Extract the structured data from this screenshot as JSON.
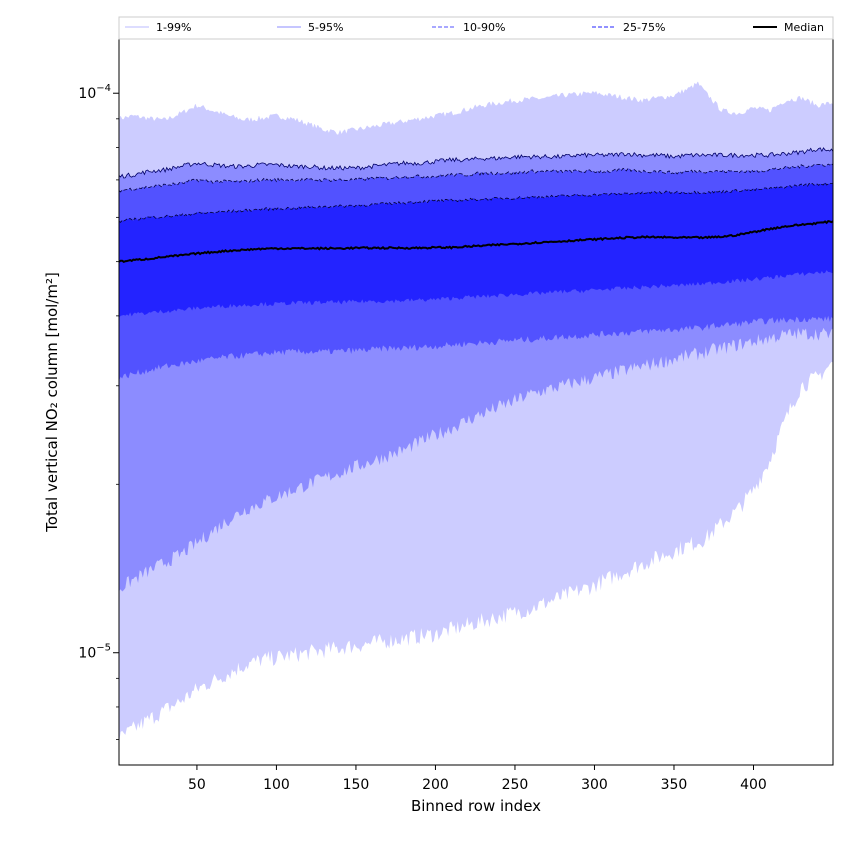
{
  "chart_data": {
    "type": "area",
    "xlabel": "Binned row index",
    "ylabel": "Total vertical NO₂ column [mol/m²]",
    "y_scale": "log",
    "xlim": [
      1,
      450
    ],
    "ylim": [
      6.3e-06,
      0.000125
    ],
    "grid": false,
    "legend_position": "top",
    "x_ticks": [
      {
        "value": 50,
        "label": "50"
      },
      {
        "value": 100,
        "label": "100"
      },
      {
        "value": 150,
        "label": "150"
      },
      {
        "value": 200,
        "label": "200"
      },
      {
        "value": 250,
        "label": "250"
      },
      {
        "value": 300,
        "label": "300"
      },
      {
        "value": 350,
        "label": "350"
      },
      {
        "value": 400,
        "label": "400"
      }
    ],
    "y_major_ticks": [
      {
        "value": 1e-05,
        "base": "10",
        "exp": "−5"
      },
      {
        "value": 0.0001,
        "base": "10",
        "exp": "−4"
      }
    ],
    "x": [
      1,
      10,
      20,
      30,
      40,
      50,
      60,
      70,
      80,
      90,
      100,
      110,
      120,
      130,
      140,
      150,
      160,
      170,
      180,
      190,
      200,
      210,
      220,
      230,
      240,
      250,
      260,
      270,
      280,
      290,
      300,
      310,
      320,
      330,
      340,
      350,
      360,
      365,
      370,
      380,
      390,
      400,
      410,
      420,
      430,
      440,
      450
    ],
    "bands": [
      {
        "name": "1-99%",
        "color": "#ccccff",
        "line_color": "#ccccff",
        "line_style": "solid",
        "upper": [
          9e-05,
          9.1e-05,
          9e-05,
          8.95e-05,
          9.2e-05,
          9.5e-05,
          9.3e-05,
          9.1e-05,
          8.95e-05,
          9e-05,
          9.1e-05,
          9e-05,
          8.8e-05,
          8.6e-05,
          8.5e-05,
          8.6e-05,
          8.7e-05,
          8.8e-05,
          8.9e-05,
          9e-05,
          9.1e-05,
          9.2e-05,
          9.35e-05,
          9.5e-05,
          9.6e-05,
          9.7e-05,
          9.75e-05,
          9.8e-05,
          9.9e-05,
          9.95e-05,
          0.0001,
          9.9e-05,
          9.8e-05,
          9.7e-05,
          9.8e-05,
          9.9e-05,
          0.000102,
          0.000104,
          0.0001,
          9.3e-05,
          9.2e-05,
          9.4e-05,
          9.3e-05,
          9.7e-05,
          9.8e-05,
          9.5e-05,
          9.6e-05
        ],
        "lower": [
          7e-06,
          7.3e-06,
          7.6e-06,
          7.9e-06,
          8.2e-06,
          8.6e-06,
          8.9e-06,
          9.2e-06,
          9.5e-06,
          9.7e-06,
          9.8e-06,
          9.9e-06,
          1e-05,
          1.01e-05,
          1.02e-05,
          1.03e-05,
          1.04e-05,
          1.05e-05,
          1.06e-05,
          1.07e-05,
          1.08e-05,
          1.1e-05,
          1.12e-05,
          1.14e-05,
          1.16e-05,
          1.18e-05,
          1.2e-05,
          1.23e-05,
          1.26e-05,
          1.29e-05,
          1.32e-05,
          1.36e-05,
          1.4e-05,
          1.44e-05,
          1.48e-05,
          1.52e-05,
          1.56e-05,
          1.58e-05,
          1.6e-05,
          1.7e-05,
          1.8e-05,
          1.95e-05,
          2.2e-05,
          2.6e-05,
          3e-05,
          3.1e-05,
          3.3e-05
        ]
      },
      {
        "name": "5-95%",
        "color": "#8c8cff",
        "line_color": "#000066",
        "line_style": "solid",
        "upper": [
          7.1e-05,
          7.15e-05,
          7.25e-05,
          7.3e-05,
          7.4e-05,
          7.5e-05,
          7.45e-05,
          7.4e-05,
          7.4e-05,
          7.45e-05,
          7.45e-05,
          7.4e-05,
          7.4e-05,
          7.35e-05,
          7.35e-05,
          7.35e-05,
          7.4e-05,
          7.45e-05,
          7.5e-05,
          7.5e-05,
          7.55e-05,
          7.6e-05,
          7.6e-05,
          7.65e-05,
          7.65e-05,
          7.7e-05,
          7.7e-05,
          7.7e-05,
          7.7e-05,
          7.75e-05,
          7.75e-05,
          7.75e-05,
          7.8e-05,
          7.75e-05,
          7.75e-05,
          7.7e-05,
          7.75e-05,
          7.75e-05,
          7.75e-05,
          7.75e-05,
          7.75e-05,
          7.75e-05,
          7.75e-05,
          7.8e-05,
          7.85e-05,
          7.95e-05,
          7.9e-05
        ],
        "lower": [
          1.3e-05,
          1.35e-05,
          1.4e-05,
          1.45e-05,
          1.5e-05,
          1.57e-05,
          1.65e-05,
          1.73e-05,
          1.8e-05,
          1.85e-05,
          1.9e-05,
          1.95e-05,
          2e-05,
          2.05e-05,
          2.1e-05,
          2.15e-05,
          2.2e-05,
          2.25e-05,
          2.3e-05,
          2.38e-05,
          2.45e-05,
          2.52e-05,
          2.6e-05,
          2.68e-05,
          2.75e-05,
          2.82e-05,
          2.9e-05,
          2.95e-05,
          3e-05,
          3.05e-05,
          3.1e-05,
          3.15e-05,
          3.2e-05,
          3.25e-05,
          3.3e-05,
          3.35e-05,
          3.4e-05,
          3.42e-05,
          3.45e-05,
          3.5e-05,
          3.55e-05,
          3.6e-05,
          3.65e-05,
          3.7e-05,
          3.72e-05,
          3.72e-05,
          3.7e-05
        ]
      },
      {
        "name": "10-90%",
        "color": "#5252ff",
        "line_color": "#000044",
        "line_style": "dashed",
        "upper": [
          6.7e-05,
          6.75e-05,
          6.8e-05,
          6.85e-05,
          6.9e-05,
          7e-05,
          6.95e-05,
          6.95e-05,
          6.95e-05,
          7e-05,
          7e-05,
          7e-05,
          7e-05,
          7e-05,
          7e-05,
          7e-05,
          7.05e-05,
          7.05e-05,
          7.1e-05,
          7.1e-05,
          7.1e-05,
          7.15e-05,
          7.15e-05,
          7.2e-05,
          7.2e-05,
          7.2e-05,
          7.25e-05,
          7.25e-05,
          7.25e-05,
          7.25e-05,
          7.25e-05,
          7.25e-05,
          7.3e-05,
          7.25e-05,
          7.25e-05,
          7.2e-05,
          7.25e-05,
          7.25e-05,
          7.25e-05,
          7.25e-05,
          7.25e-05,
          7.25e-05,
          7.3e-05,
          7.35e-05,
          7.4e-05,
          7.45e-05,
          7.45e-05
        ],
        "lower": [
          3.1e-05,
          3.15e-05,
          3.2e-05,
          3.25e-05,
          3.28e-05,
          3.32e-05,
          3.35e-05,
          3.38e-05,
          3.4e-05,
          3.42e-05,
          3.44e-05,
          3.45e-05,
          3.45e-05,
          3.45e-05,
          3.46e-05,
          3.47e-05,
          3.48e-05,
          3.5e-05,
          3.5e-05,
          3.52e-05,
          3.53e-05,
          3.55e-05,
          3.57e-05,
          3.58e-05,
          3.6e-05,
          3.62e-05,
          3.63e-05,
          3.65e-05,
          3.67e-05,
          3.68e-05,
          3.7e-05,
          3.72e-05,
          3.73e-05,
          3.75e-05,
          3.77e-05,
          3.78e-05,
          3.8e-05,
          3.8e-05,
          3.82e-05,
          3.85e-05,
          3.87e-05,
          3.9e-05,
          3.92e-05,
          3.93e-05,
          3.95e-05,
          3.95e-05,
          3.95e-05
        ]
      },
      {
        "name": "25-75%",
        "color": "#2323ff",
        "line_color": "#000033",
        "line_style": "dashed",
        "upper": [
          5.9e-05,
          5.95e-05,
          6e-05,
          6.02e-05,
          6.05e-05,
          6.1e-05,
          6.12e-05,
          6.15e-05,
          6.17e-05,
          6.2e-05,
          6.22e-05,
          6.23e-05,
          6.25e-05,
          6.27e-05,
          6.28e-05,
          6.3e-05,
          6.32e-05,
          6.35e-05,
          6.37e-05,
          6.4e-05,
          6.42e-05,
          6.43e-05,
          6.45e-05,
          6.47e-05,
          6.48e-05,
          6.5e-05,
          6.52e-05,
          6.53e-05,
          6.55e-05,
          6.57e-05,
          6.58e-05,
          6.6e-05,
          6.62e-05,
          6.63e-05,
          6.65e-05,
          6.65e-05,
          6.65e-05,
          6.65e-05,
          6.65e-05,
          6.67e-05,
          6.7e-05,
          6.72e-05,
          6.75e-05,
          6.8e-05,
          6.85e-05,
          6.88e-05,
          6.9e-05
        ],
        "lower": [
          4e-05,
          4.03e-05,
          4.05e-05,
          4.08e-05,
          4.1e-05,
          4.13e-05,
          4.15e-05,
          4.17e-05,
          4.18e-05,
          4.2e-05,
          4.2e-05,
          4.22e-05,
          4.22e-05,
          4.23e-05,
          4.23e-05,
          4.24e-05,
          4.25e-05,
          4.25e-05,
          4.26e-05,
          4.27e-05,
          4.28e-05,
          4.3e-05,
          4.32e-05,
          4.33e-05,
          4.35e-05,
          4.37e-05,
          4.38e-05,
          4.4e-05,
          4.42e-05,
          4.43e-05,
          4.45e-05,
          4.47e-05,
          4.48e-05,
          4.5e-05,
          4.52e-05,
          4.53e-05,
          4.55e-05,
          4.56e-05,
          4.57e-05,
          4.6e-05,
          4.62e-05,
          4.65e-05,
          4.68e-05,
          4.72e-05,
          4.75e-05,
          4.78e-05,
          4.8e-05
        ]
      }
    ],
    "median": {
      "name": "Median",
      "color": "#000000",
      "values": [
        5e-05,
        5.03e-05,
        5.06e-05,
        5.1e-05,
        5.13e-05,
        5.17e-05,
        5.2e-05,
        5.23e-05,
        5.25e-05,
        5.27e-05,
        5.28e-05,
        5.28e-05,
        5.28e-05,
        5.28e-05,
        5.28e-05,
        5.29e-05,
        5.29e-05,
        5.29e-05,
        5.29e-05,
        5.29e-05,
        5.3e-05,
        5.3e-05,
        5.32e-05,
        5.34e-05,
        5.36e-05,
        5.38e-05,
        5.4e-05,
        5.42e-05,
        5.44e-05,
        5.46e-05,
        5.48e-05,
        5.5e-05,
        5.52e-05,
        5.53e-05,
        5.53e-05,
        5.52e-05,
        5.52e-05,
        5.52e-05,
        5.52e-05,
        5.54e-05,
        5.58e-05,
        5.65e-05,
        5.72e-05,
        5.78e-05,
        5.82e-05,
        5.86e-05,
        5.9e-05
      ]
    }
  }
}
